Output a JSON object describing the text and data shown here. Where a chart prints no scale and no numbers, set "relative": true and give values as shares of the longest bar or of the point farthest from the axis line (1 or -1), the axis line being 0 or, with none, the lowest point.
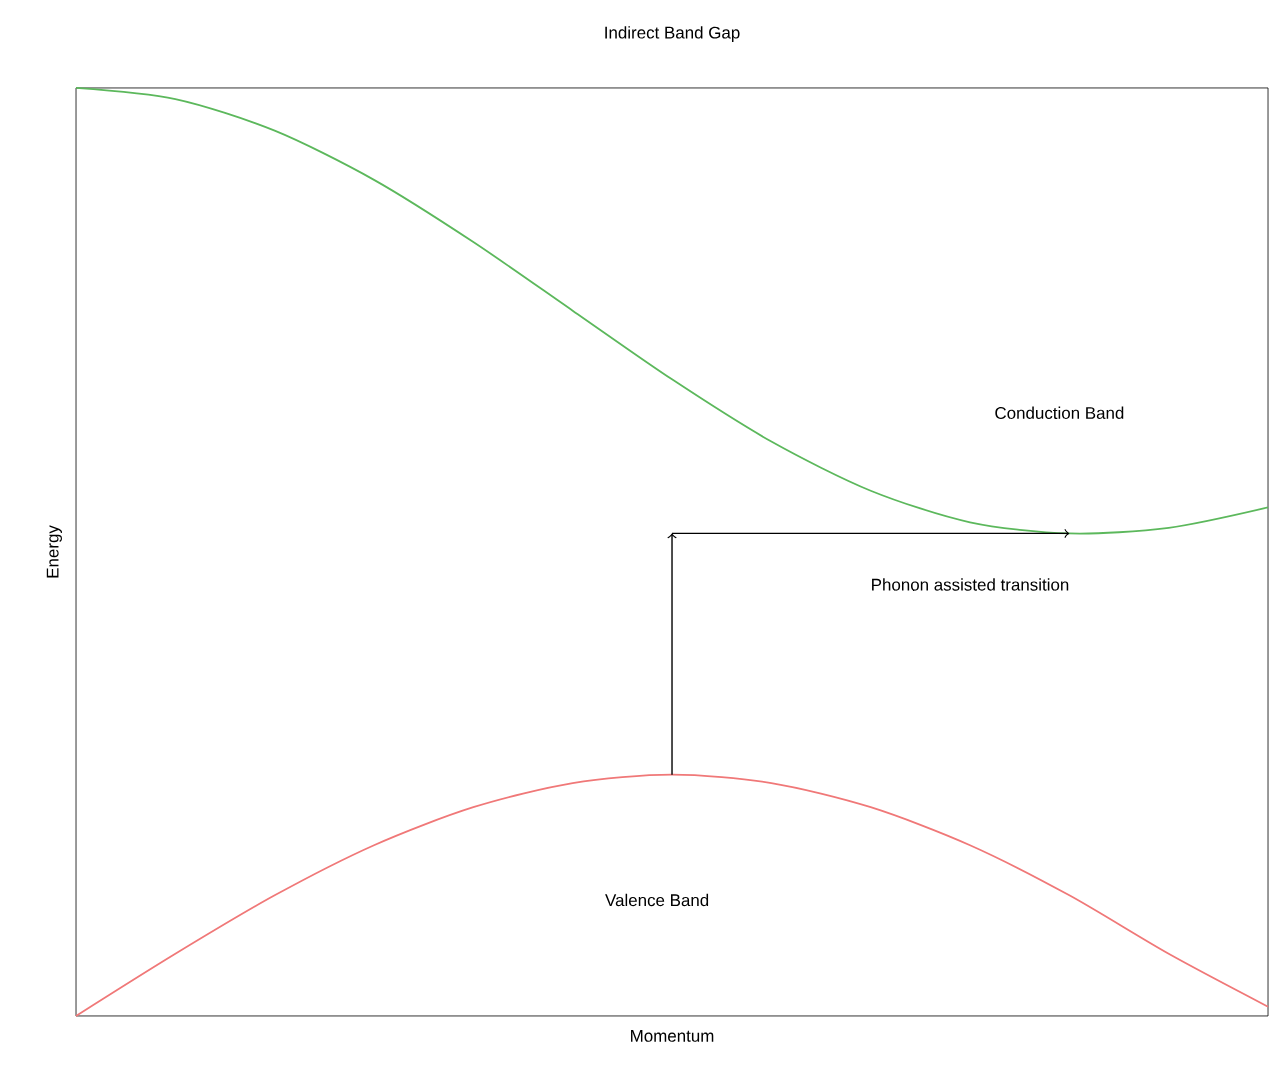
{
  "chart_data": {
    "type": "line",
    "title": "Indirect Band Gap",
    "xlabel": "Momentum",
    "ylabel": "Energy",
    "relative": true,
    "categories": [
      null,
      null,
      null,
      null,
      null,
      null,
      null,
      null,
      null,
      null,
      null,
      null,
      null
    ],
    "series": [
      {
        "color": "#5cb85c",
        "values": [
          1.0,
          0.988,
          0.954,
          0.901,
          0.834,
          0.76,
          0.686,
          0.619,
          0.566,
          0.532,
          0.52,
          0.526,
          0.548
        ]
      },
      {
        "color": "#f07878",
        "values": [
          0,
          0.067,
          0.13,
          0.184,
          0.225,
          0.251,
          0.26,
          0.251,
          0.225,
          0.184,
          0.13,
          0.067,
          0.01
        ]
      }
    ],
    "annotations": [
      "Conduction Band",
      "Phonon assisted transition",
      "Valence Band"
    ]
  }
}
